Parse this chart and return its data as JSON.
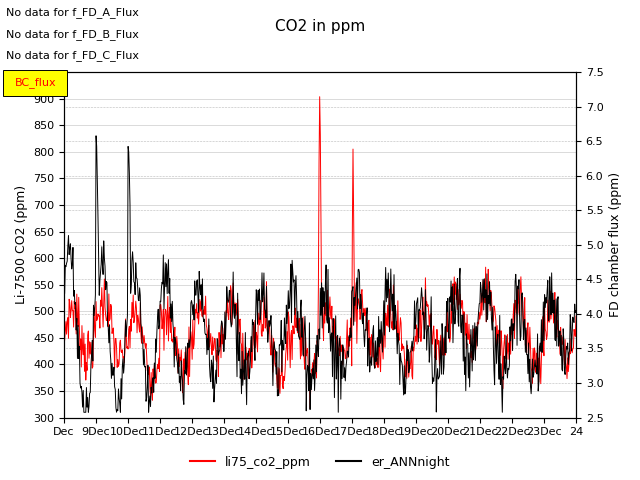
{
  "title": "CO2 in ppm",
  "ylabel_left": "Li-7500 CO2 (ppm)",
  "ylabel_right": "FD chamber flux (ppm)",
  "ylim_left": [
    300,
    950
  ],
  "ylim_right": [
    2.5,
    7.5
  ],
  "yticks_left": [
    300,
    350,
    400,
    450,
    500,
    550,
    600,
    650,
    700,
    750,
    800,
    850,
    900
  ],
  "yticks_right": [
    2.5,
    3.0,
    3.5,
    4.0,
    4.5,
    5.0,
    5.5,
    6.0,
    6.5,
    7.0,
    7.5
  ],
  "xticklabels": [
    "Dec",
    "9Dec",
    "10Dec",
    "11Dec",
    "12Dec",
    "13Dec",
    "14Dec",
    "15Dec",
    "16Dec",
    "17Dec",
    "18Dec",
    "19Dec",
    "20Dec",
    "21Dec",
    "22Dec",
    "23Dec",
    "24"
  ],
  "annotations": [
    "No data for f_FD_A_Flux",
    "No data for f_FD_B_Flux",
    "No data for f_FD_C_Flux"
  ],
  "legend_box_label": "BC_flux",
  "background_color": "#ffffff",
  "grid_color": "#cccccc",
  "title_fontsize": 11,
  "axis_fontsize": 9,
  "tick_fontsize": 8,
  "annot_fontsize": 8
}
